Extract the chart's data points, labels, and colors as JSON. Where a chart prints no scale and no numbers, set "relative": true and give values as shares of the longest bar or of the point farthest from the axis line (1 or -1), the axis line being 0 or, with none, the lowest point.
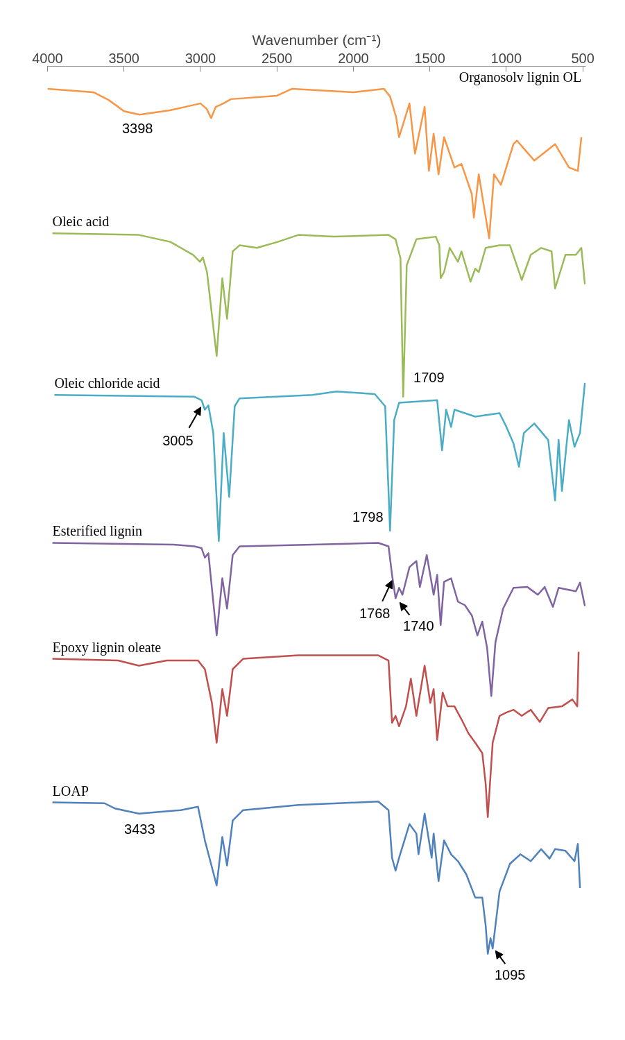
{
  "chart_data": {
    "type": "line",
    "relative": true,
    "xlabel": "Wavenumber (cm⁻¹)",
    "xlim": [
      4000,
      480
    ],
    "xticks": [
      4000,
      3500,
      3000,
      2500,
      2000,
      1500,
      1000,
      500
    ],
    "line_style": "solid",
    "marker": "none",
    "series": [
      {
        "name": "Organosolv lignin OL",
        "color": "#f79646",
        "x": [
          4000,
          3700,
          3600,
          3500,
          3398,
          3200,
          3000,
          2960,
          2930,
          2900,
          2850,
          2800,
          2500,
          2400,
          2000,
          1800,
          1760,
          1720,
          1701,
          1633,
          1597,
          1534,
          1506,
          1475,
          1443,
          1407,
          1339,
          1293,
          1225,
          1212,
          1180,
          1112,
          1080,
          1035,
          953,
          930,
          817,
          681,
          590,
          532,
          509
        ],
        "values": [
          1.0,
          0.996,
          0.987,
          0.974,
          0.97,
          0.975,
          0.983,
          0.977,
          0.966,
          0.979,
          0.983,
          0.988,
          0.992,
          1.0,
          0.996,
          1.0,
          0.991,
          0.967,
          0.944,
          0.983,
          0.925,
          0.979,
          0.905,
          0.948,
          0.901,
          0.944,
          0.909,
          0.913,
          0.878,
          0.851,
          0.901,
          0.827,
          0.901,
          0.889,
          0.936,
          0.94,
          0.917,
          0.936,
          0.909,
          0.905,
          0.944
        ]
      },
      {
        "name": "Oleic acid",
        "color": "#9bbb59",
        "x": [
          3968,
          3402,
          3197,
          3048,
          3003,
          2984,
          2957,
          2894,
          2857,
          2826,
          2789,
          2744,
          2631,
          2495,
          2359,
          2132,
          1770,
          1724,
          1692,
          1674,
          1651,
          1588,
          1461,
          1438,
          1429,
          1407,
          1370,
          1316,
          1293,
          1234,
          1203,
          1180,
          1135,
          1044,
          976,
          899,
          840,
          772,
          704,
          681,
          613,
          545,
          509,
          486
        ],
        "values": [
          0.833,
          0.831,
          0.823,
          0.808,
          0.8,
          0.805,
          0.788,
          0.691,
          0.781,
          0.734,
          0.812,
          0.819,
          0.816,
          0.823,
          0.831,
          0.829,
          0.831,
          0.826,
          0.804,
          0.644,
          0.796,
          0.826,
          0.829,
          0.819,
          0.781,
          0.788,
          0.816,
          0.8,
          0.812,
          0.777,
          0.792,
          0.788,
          0.816,
          0.819,
          0.819,
          0.779,
          0.808,
          0.816,
          0.812,
          0.769,
          0.808,
          0.808,
          0.816,
          0.774
        ]
      },
      {
        "name": "Oleic chloride acid",
        "color": "#4bacc6",
        "x": [
          3955,
          3039,
          2993,
          2971,
          2948,
          2916,
          2880,
          2848,
          2812,
          2776,
          2744,
          2268,
          2109,
          1860,
          1792,
          1760,
          1733,
          1701,
          1452,
          1420,
          1393,
          1361,
          1339,
          1203,
          1044,
          999,
          953,
          917,
          885,
          817,
          726,
          681,
          658,
          636,
          590,
          554,
          518,
          486
        ],
        "values": [
          0.646,
          0.644,
          0.64,
          0.629,
          0.634,
          0.602,
          0.477,
          0.602,
          0.528,
          0.633,
          0.642,
          0.646,
          0.65,
          0.647,
          0.633,
          0.489,
          0.617,
          0.637,
          0.64,
          0.582,
          0.629,
          0.609,
          0.629,
          0.621,
          0.625,
          0.609,
          0.59,
          0.563,
          0.602,
          0.613,
          0.594,
          0.524,
          0.594,
          0.535,
          0.617,
          0.586,
          0.602,
          0.66
        ]
      },
      {
        "name": "Esterified lignin",
        "color": "#8064a2",
        "x": [
          3968,
          3175,
          3039,
          2993,
          2971,
          2948,
          2894,
          2857,
          2826,
          2789,
          2744,
          2268,
          1837,
          1770,
          1747,
          1724,
          1701,
          1679,
          1633,
          1588,
          1565,
          1520,
          1475,
          1452,
          1429,
          1407,
          1361,
          1316,
          1271,
          1225,
          1189,
          1157,
          1125,
          1098,
          1071,
          1021,
          953,
          862,
          794,
          749,
          695,
          658,
          545,
          518,
          486
        ],
        "values": [
          0.475,
          0.473,
          0.471,
          0.469,
          0.458,
          0.463,
          0.368,
          0.434,
          0.399,
          0.461,
          0.471,
          0.473,
          0.475,
          0.471,
          0.438,
          0.411,
          0.423,
          0.415,
          0.447,
          0.454,
          0.424,
          0.461,
          0.415,
          0.438,
          0.38,
          0.43,
          0.434,
          0.407,
          0.403,
          0.391,
          0.368,
          0.384,
          0.353,
          0.298,
          0.36,
          0.399,
          0.423,
          0.424,
          0.415,
          0.424,
          0.401,
          0.423,
          0.419,
          0.429,
          0.402
        ]
      },
      {
        "name": "Epoxy lignin oleate",
        "color": "#c0504d",
        "x": [
          3968,
          3538,
          3402,
          3220,
          3016,
          2971,
          2925,
          2894,
          2857,
          2826,
          2789,
          2721,
          2359,
          1837,
          1770,
          1747,
          1724,
          1701,
          1656,
          1624,
          1588,
          1534,
          1497,
          1475,
          1452,
          1416,
          1384,
          1339,
          1293,
          1248,
          1203,
          1157,
          1135,
          1121,
          1089,
          1044,
          999,
          953,
          899,
          840,
          781,
          726,
          636,
          568,
          536,
          527
        ],
        "values": [
          0.341,
          0.339,
          0.333,
          0.339,
          0.339,
          0.329,
          0.29,
          0.244,
          0.306,
          0.275,
          0.329,
          0.341,
          0.345,
          0.345,
          0.339,
          0.267,
          0.275,
          0.263,
          0.286,
          0.318,
          0.275,
          0.333,
          0.29,
          0.306,
          0.247,
          0.302,
          0.286,
          0.286,
          0.271,
          0.255,
          0.244,
          0.232,
          0.197,
          0.158,
          0.244,
          0.275,
          0.279,
          0.282,
          0.275,
          0.282,
          0.268,
          0.284,
          0.286,
          0.294,
          0.286,
          0.349
        ]
      },
      {
        "name": "LOAP",
        "color": "#4f81bd",
        "x": [
          3968,
          3628,
          3560,
          3402,
          3129,
          3016,
          2971,
          2925,
          2894,
          2857,
          2826,
          2789,
          2721,
          2359,
          1837,
          1770,
          1747,
          1724,
          1701,
          1633,
          1588,
          1574,
          1534,
          1488,
          1475,
          1443,
          1407,
          1361,
          1316,
          1262,
          1203,
          1157,
          1135,
          1121,
          1103,
          1089,
          1044,
          976,
          908,
          840,
          772,
          717,
          681,
          613,
          554,
          532,
          518
        ],
        "values": [
          0.175,
          0.174,
          0.168,
          0.162,
          0.166,
          0.17,
          0.131,
          0.1,
          0.079,
          0.135,
          0.102,
          0.154,
          0.166,
          0.172,
          0.176,
          0.166,
          0.111,
          0.096,
          0.111,
          0.15,
          0.139,
          0.115,
          0.162,
          0.111,
          0.139,
          0.084,
          0.131,
          0.115,
          0.107,
          0.092,
          0.065,
          0.065,
          0.033,
          0.0,
          0.018,
          0.006,
          0.072,
          0.104,
          0.115,
          0.107,
          0.121,
          0.11,
          0.121,
          0.119,
          0.107,
          0.127,
          0.076
        ]
      }
    ],
    "annotations": [
      {
        "text": "3398",
        "x": 3398,
        "y": 0.97
      },
      {
        "text": "1709",
        "x": 1674,
        "y": 0.644
      },
      {
        "text": "3005",
        "x": 2993,
        "y": 0.64
      },
      {
        "text": "1798",
        "x": 1760,
        "y": 0.489
      },
      {
        "text": "1768",
        "x": 1747,
        "y": 0.438
      },
      {
        "text": "1740",
        "x": 1724,
        "y": 0.411
      },
      {
        "text": "3433",
        "x": 3402,
        "y": 0.162
      },
      {
        "text": "1095",
        "x": 1089,
        "y": 0.006
      }
    ]
  }
}
